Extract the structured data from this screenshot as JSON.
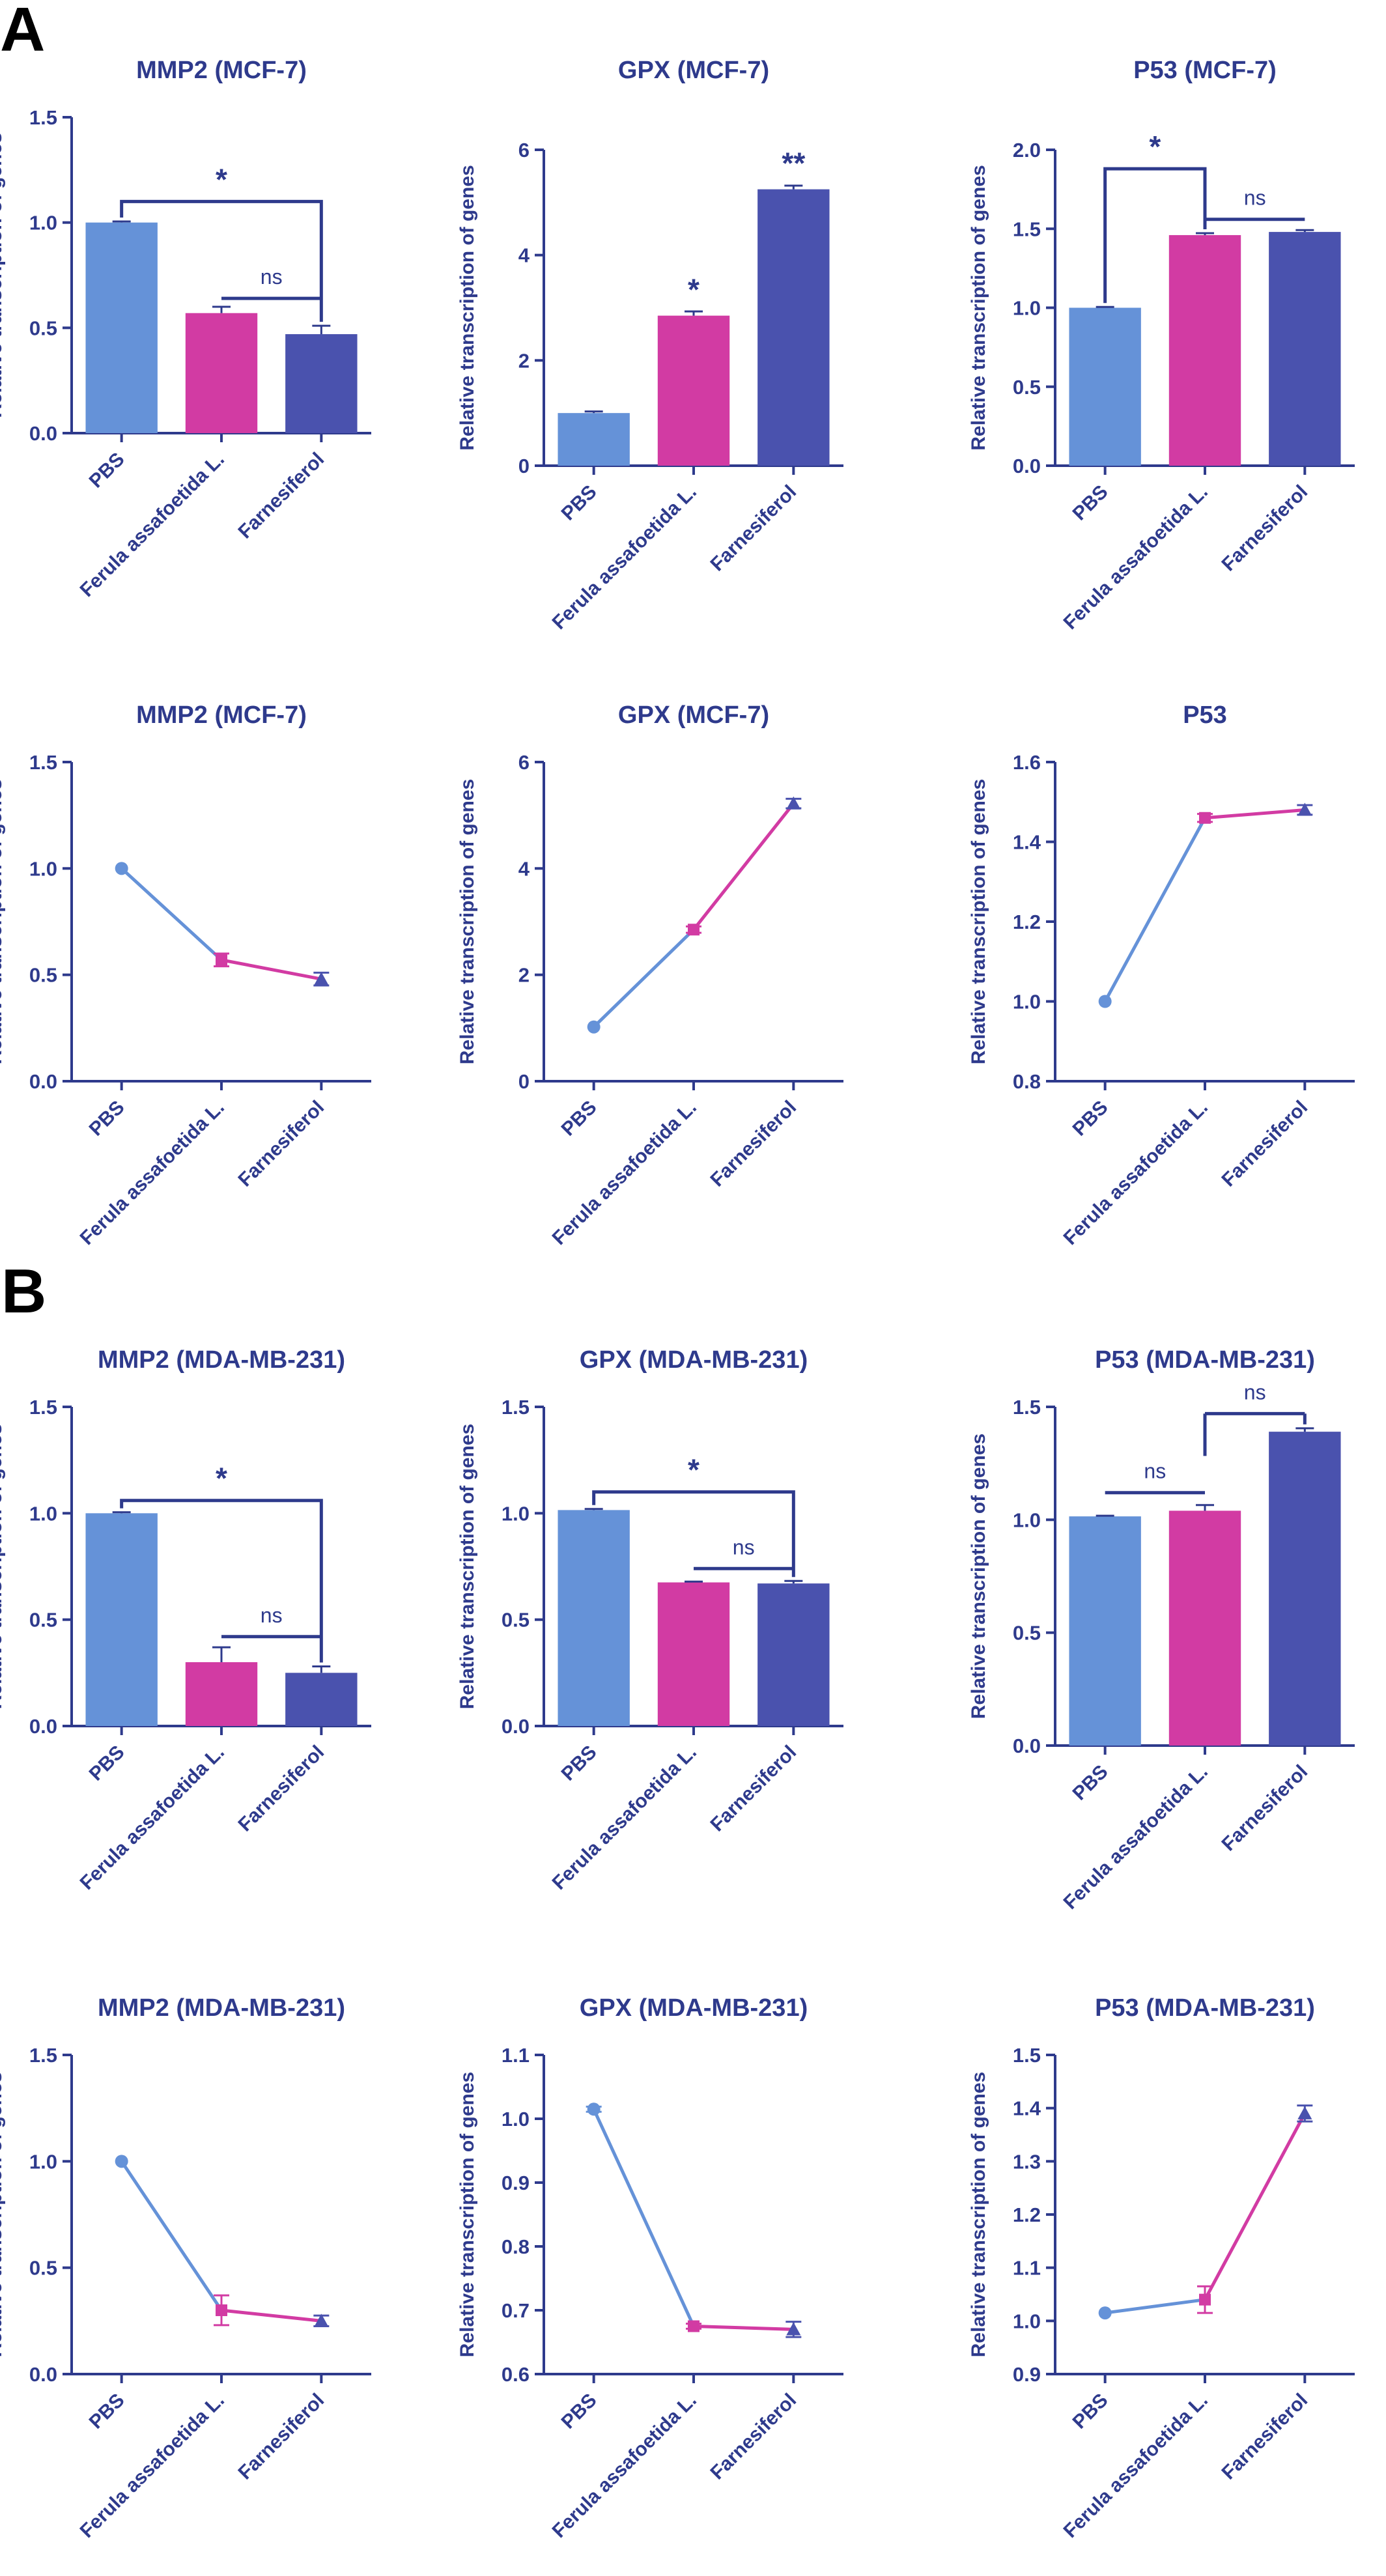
{
  "figure": {
    "panel_labels": [
      "A",
      "B"
    ],
    "colors": {
      "title": "#2E3A8C",
      "axis": "#2E3A8C",
      "pbs": "#6592D8",
      "ferula": "#D23BA3",
      "farnesiferol": "#4A52AE",
      "significance": "#2E3A8C"
    }
  },
  "chart_data": [
    {
      "type": "bar",
      "title": "MMP2 (MCF-7)",
      "ylabel": "Relative transcription of genes",
      "categories": [
        "PBS",
        "Ferula assafoetida L.",
        "Farnesiferol"
      ],
      "values": [
        1.0,
        0.57,
        0.47
      ],
      "errors": [
        0.005,
        0.03,
        0.04
      ],
      "ylim": [
        0,
        1.5
      ],
      "yticks": [
        0.0,
        0.5,
        1.0,
        1.5
      ],
      "tick_decimals": 1,
      "annotations": [
        {
          "label": "*",
          "from": "PBS",
          "to": "Farnesiferol",
          "y": 1.1
        },
        {
          "label": "ns",
          "from": "Ferula assafoetida L.",
          "to": "Farnesiferol",
          "y": 0.64
        }
      ]
    },
    {
      "type": "bar",
      "title": "GPX (MCF-7)",
      "ylabel": "Relative transcription of genes",
      "categories": [
        "PBS",
        "Ferula assafoetida L.",
        "Farnesiferol"
      ],
      "values": [
        1.0,
        2.85,
        5.25
      ],
      "errors": [
        0.03,
        0.08,
        0.07
      ],
      "ylim": [
        0,
        6
      ],
      "yticks": [
        0,
        2,
        4,
        6
      ],
      "tick_decimals": 0,
      "annotations": [
        {
          "label": "*",
          "at": "Ferula assafoetida L.",
          "y": 3.15
        },
        {
          "label": "**",
          "at": "Farnesiferol",
          "y": 5.55
        }
      ]
    },
    {
      "type": "bar",
      "title": "P53 (MCF-7)",
      "ylabel": "Relative transcription of genes",
      "categories": [
        "PBS",
        "Ferula assafoetida L.",
        "Farnesiferol"
      ],
      "values": [
        1.0,
        1.46,
        1.48
      ],
      "errors": [
        0.005,
        0.012,
        0.012
      ],
      "ylim": [
        0,
        2.0
      ],
      "yticks": [
        0.0,
        0.5,
        1.0,
        1.5,
        2.0
      ],
      "tick_decimals": 1,
      "annotations": [
        {
          "label": "*",
          "from": "PBS",
          "to": "Ferula assafoetida L.",
          "y": 1.88
        },
        {
          "label": "ns",
          "from": "Ferula assafoetida L.",
          "to": "Farnesiferol",
          "y": 1.56
        }
      ]
    },
    {
      "type": "line",
      "title": "MMP2 (MCF-7)",
      "ylabel": "Relative transcription of genes",
      "categories": [
        "PBS",
        "Ferula assafoetida L.",
        "Farnesiferol"
      ],
      "values": [
        1.0,
        0.57,
        0.48
      ],
      "errors": [
        0,
        0.03,
        0.03
      ],
      "ylim": [
        0,
        1.5
      ],
      "yticks": [
        0.0,
        0.5,
        1.0,
        1.5
      ],
      "tick_decimals": 1
    },
    {
      "type": "line",
      "title": "GPX (MCF-7)",
      "ylabel": "Relative transcription of genes",
      "categories": [
        "PBS",
        "Ferula assafoetida L.",
        "Farnesiferol"
      ],
      "values": [
        1.02,
        2.85,
        5.22
      ],
      "errors": [
        0,
        0.06,
        0.09
      ],
      "ylim": [
        0,
        6
      ],
      "yticks": [
        0,
        2,
        4,
        6
      ],
      "tick_decimals": 0
    },
    {
      "type": "line",
      "title": "P53",
      "ylabel": "Relative transcription of genes",
      "categories": [
        "PBS",
        "Ferula assafoetida L.",
        "Farnesiferol"
      ],
      "values": [
        1.0,
        1.46,
        1.48
      ],
      "errors": [
        0,
        0.01,
        0.012
      ],
      "ylim": [
        0.8,
        1.6
      ],
      "yticks": [
        0.8,
        1.0,
        1.2,
        1.4,
        1.6
      ],
      "tick_decimals": 1
    },
    {
      "type": "bar",
      "title": "MMP2 (MDA-MB-231)",
      "ylabel": "Relative transcription of genes",
      "categories": [
        "PBS",
        "Ferula assafoetida L.",
        "Farnesiferol"
      ],
      "values": [
        1.0,
        0.3,
        0.25
      ],
      "errors": [
        0.005,
        0.07,
        0.03
      ],
      "ylim": [
        0,
        1.5
      ],
      "yticks": [
        0.0,
        0.5,
        1.0,
        1.5
      ],
      "tick_decimals": 1,
      "annotations": [
        {
          "label": "*",
          "from": "PBS",
          "to": "Farnesiferol",
          "y": 1.06
        },
        {
          "label": "ns",
          "from": "Ferula assafoetida L.",
          "to": "Farnesiferol",
          "y": 0.42
        }
      ]
    },
    {
      "type": "bar",
      "title": "GPX (MDA-MB-231)",
      "ylabel": "Relative transcription of genes",
      "categories": [
        "PBS",
        "Ferula assafoetida L.",
        "Farnesiferol"
      ],
      "values": [
        1.015,
        0.675,
        0.67
      ],
      "errors": [
        0.005,
        0.004,
        0.012
      ],
      "ylim": [
        0,
        1.5
      ],
      "yticks": [
        0.0,
        0.5,
        1.0,
        1.5
      ],
      "tick_decimals": 1,
      "annotations": [
        {
          "label": "*",
          "from": "PBS",
          "to": "Farnesiferol",
          "y": 1.1
        },
        {
          "label": "ns",
          "from": "Ferula assafoetida L.",
          "to": "Farnesiferol",
          "y": 0.74
        }
      ]
    },
    {
      "type": "bar",
      "title": "P53 (MDA-MB-231)",
      "ylabel": "Relative transcription of genes",
      "categories": [
        "PBS",
        "Ferula assafoetida L.",
        "Farnesiferol"
      ],
      "values": [
        1.015,
        1.04,
        1.39
      ],
      "errors": [
        0.003,
        0.025,
        0.015
      ],
      "ylim": [
        0,
        1.5
      ],
      "yticks": [
        0.0,
        0.5,
        1.0,
        1.5
      ],
      "tick_decimals": 1,
      "annotations": [
        {
          "label": "ns",
          "from": "PBS",
          "to": "Ferula assafoetida L.",
          "y": 1.12
        },
        {
          "label": "ns",
          "from": "Ferula assafoetida L.",
          "to": "Farnesiferol",
          "y": 1.47
        }
      ]
    },
    {
      "type": "line",
      "title": "MMP2 (MDA-MB-231)",
      "ylabel": "Relative transcription of genes",
      "categories": [
        "PBS",
        "Ferula assafoetida L.",
        "Farnesiferol"
      ],
      "values": [
        1.0,
        0.3,
        0.25
      ],
      "errors": [
        0,
        0.07,
        0.025
      ],
      "ylim": [
        0,
        1.5
      ],
      "yticks": [
        0.0,
        0.5,
        1.0,
        1.5
      ],
      "tick_decimals": 1
    },
    {
      "type": "line",
      "title": "GPX (MDA-MB-231)",
      "ylabel": "Relative transcription of genes",
      "categories": [
        "PBS",
        "Ferula assafoetida L.",
        "Farnesiferol"
      ],
      "values": [
        1.015,
        0.675,
        0.67
      ],
      "errors": [
        0.004,
        0.004,
        0.012
      ],
      "ylim": [
        0.6,
        1.1
      ],
      "yticks": [
        0.6,
        0.7,
        0.8,
        0.9,
        1.0,
        1.1
      ],
      "tick_decimals": 1
    },
    {
      "type": "line",
      "title": "P53 (MDA-MB-231)",
      "ylabel": "Relative transcription of genes",
      "categories": [
        "PBS",
        "Ferula assafoetida L.",
        "Farnesiferol"
      ],
      "values": [
        1.015,
        1.04,
        1.39
      ],
      "errors": [
        0,
        0.025,
        0.015
      ],
      "ylim": [
        0.9,
        1.5
      ],
      "yticks": [
        0.9,
        1.0,
        1.1,
        1.2,
        1.3,
        1.4,
        1.5
      ],
      "tick_decimals": 1
    }
  ]
}
